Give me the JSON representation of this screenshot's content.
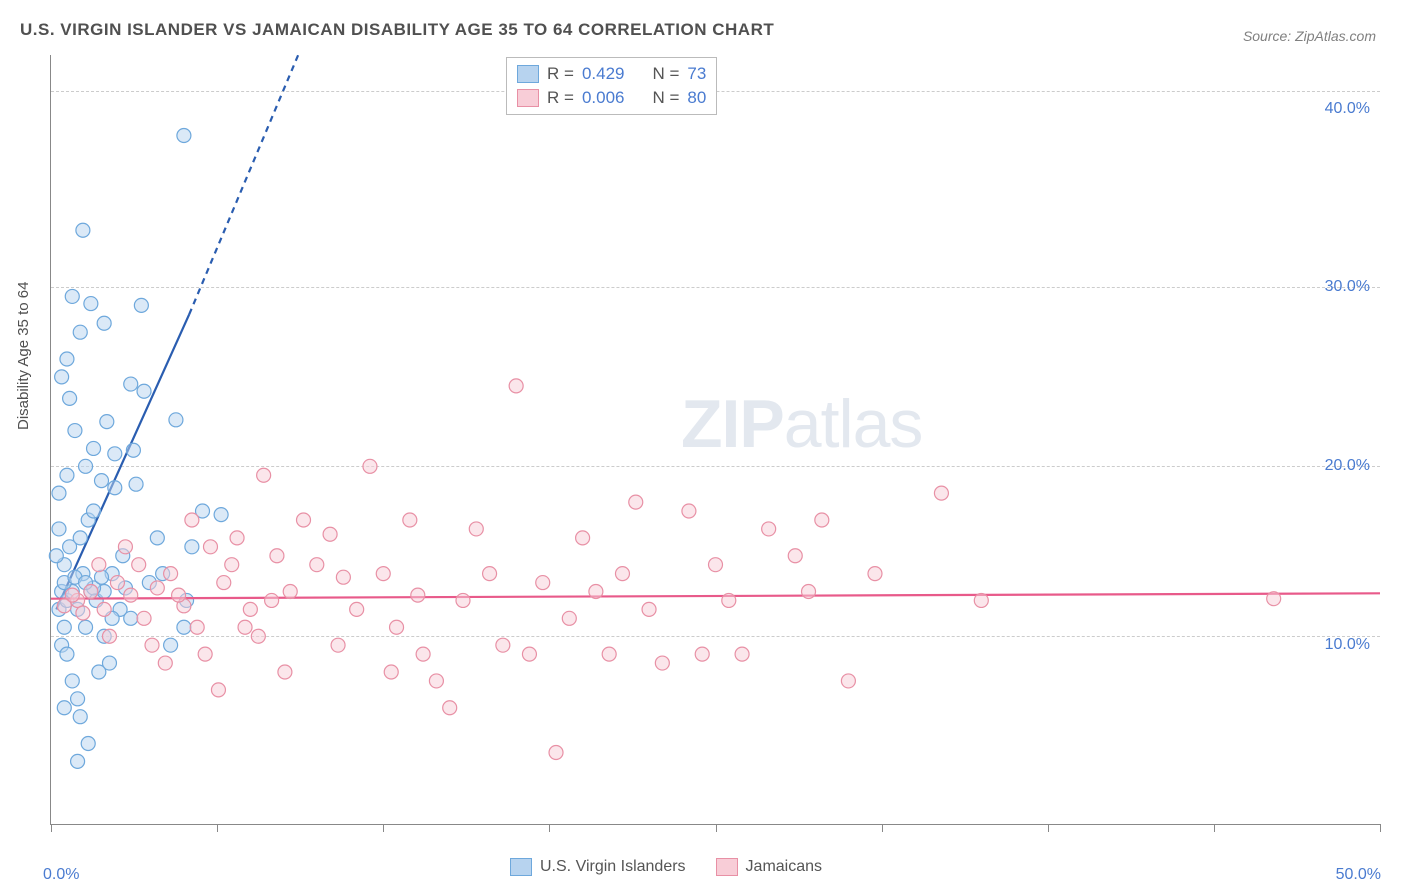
{
  "title": "U.S. VIRGIN ISLANDER VS JAMAICAN DISABILITY AGE 35 TO 64 CORRELATION CHART",
  "source": "Source: ZipAtlas.com",
  "ylabel": "Disability Age 35 to 64",
  "watermark_zip": "ZIP",
  "watermark_atlas": "atlas",
  "chart": {
    "type": "scatter",
    "xlim": [
      0,
      50
    ],
    "ylim": [
      0,
      43
    ],
    "x_ticks": [
      0,
      6.25,
      12.5,
      18.75,
      25,
      31.25,
      37.5,
      43.75,
      50
    ],
    "x_tick_labels": {
      "0": "0.0%",
      "50": "50.0%"
    },
    "y_grid": [
      10.5,
      20,
      30,
      41
    ],
    "y_tick_labels": [
      {
        "v": 10,
        "label": "10.0%"
      },
      {
        "v": 20,
        "label": "20.0%"
      },
      {
        "v": 30,
        "label": "30.0%"
      },
      {
        "v": 40,
        "label": "40.0%"
      }
    ],
    "background_color": "#ffffff",
    "grid_color": "#cccccc",
    "axis_color": "#888888",
    "marker_radius": 7,
    "marker_opacity": 0.5,
    "series": [
      {
        "name": "U.S. Virgin Islanders",
        "color_fill": "#b7d3ef",
        "color_stroke": "#6ea8dc",
        "R": "0.429",
        "N": "73",
        "trend": {
          "x1": 0.2,
          "y1": 12,
          "x2": 5.2,
          "y2": 28.5,
          "dash_to_x": 9.3,
          "dash_to_y": 43,
          "color": "#2a5db0",
          "width": 2.2
        },
        "points": [
          [
            0.3,
            12
          ],
          [
            0.4,
            13
          ],
          [
            0.5,
            11
          ],
          [
            0.6,
            12.5
          ],
          [
            0.8,
            13
          ],
          [
            1.0,
            12
          ],
          [
            1.2,
            14
          ],
          [
            0.5,
            14.5
          ],
          [
            0.7,
            15.5
          ],
          [
            1.1,
            16
          ],
          [
            0.4,
            10
          ],
          [
            0.6,
            9.5
          ],
          [
            1.3,
            11
          ],
          [
            1.5,
            13
          ],
          [
            0.8,
            8
          ],
          [
            1.0,
            7
          ],
          [
            1.7,
            12.5
          ],
          [
            2.0,
            13
          ],
          [
            2.3,
            14
          ],
          [
            2.6,
            12
          ],
          [
            1.4,
            17
          ],
          [
            1.6,
            17.5
          ],
          [
            2.0,
            10.5
          ],
          [
            2.3,
            11.5
          ],
          [
            2.7,
            15
          ],
          [
            0.5,
            6.5
          ],
          [
            1.1,
            6
          ],
          [
            1.4,
            4.5
          ],
          [
            1.0,
            3.5
          ],
          [
            1.8,
            8.5
          ],
          [
            2.2,
            9
          ],
          [
            1.3,
            20
          ],
          [
            1.6,
            21
          ],
          [
            2.1,
            22.5
          ],
          [
            2.4,
            20.7
          ],
          [
            3.1,
            20.9
          ],
          [
            3.0,
            24.6
          ],
          [
            3.5,
            24.2
          ],
          [
            4.7,
            22.6
          ],
          [
            0.7,
            23.8
          ],
          [
            1.1,
            27.5
          ],
          [
            1.5,
            29.1
          ],
          [
            2.0,
            28
          ],
          [
            3.4,
            29
          ],
          [
            0.8,
            29.5
          ],
          [
            1.2,
            33.2
          ],
          [
            5.0,
            38.5
          ],
          [
            3.7,
            13.5
          ],
          [
            4.2,
            14
          ],
          [
            5.1,
            12.5
          ],
          [
            5.7,
            17.5
          ],
          [
            6.4,
            17.3
          ],
          [
            5.3,
            15.5
          ],
          [
            4.0,
            16
          ],
          [
            3.2,
            19
          ],
          [
            0.3,
            18.5
          ],
          [
            0.6,
            19.5
          ],
          [
            5.0,
            11
          ],
          [
            4.5,
            10
          ],
          [
            3.0,
            11.5
          ],
          [
            1.9,
            19.2
          ],
          [
            2.4,
            18.8
          ],
          [
            0.2,
            15
          ],
          [
            0.3,
            16.5
          ],
          [
            0.9,
            22
          ],
          [
            0.4,
            25
          ],
          [
            0.6,
            26
          ],
          [
            1.6,
            13.2
          ],
          [
            1.9,
            13.8
          ],
          [
            2.8,
            13.2
          ],
          [
            0.5,
            13.5
          ],
          [
            0.9,
            13.8
          ],
          [
            1.3,
            13.5
          ]
        ]
      },
      {
        "name": "Jamaicans",
        "color_fill": "#f8cdd7",
        "color_stroke": "#e890a5",
        "R": "0.006",
        "N": "80",
        "trend": {
          "x1": 0,
          "y1": 12.6,
          "x2": 50,
          "y2": 12.9,
          "color": "#e85a8a",
          "width": 2.2
        },
        "points": [
          [
            1.0,
            12.5
          ],
          [
            1.5,
            13
          ],
          [
            2.0,
            12
          ],
          [
            2.5,
            13.5
          ],
          [
            3.0,
            12.8
          ],
          [
            3.5,
            11.5
          ],
          [
            4.0,
            13.2
          ],
          [
            4.5,
            14
          ],
          [
            5.0,
            12.2
          ],
          [
            5.5,
            11
          ],
          [
            6.0,
            15.5
          ],
          [
            6.5,
            13.5
          ],
          [
            7.0,
            16
          ],
          [
            7.5,
            12
          ],
          [
            8.0,
            19.5
          ],
          [
            8.5,
            15
          ],
          [
            9.0,
            13
          ],
          [
            9.5,
            17
          ],
          [
            10.0,
            14.5
          ],
          [
            10.5,
            16.2
          ],
          [
            11.0,
            13.8
          ],
          [
            11.5,
            12
          ],
          [
            12.0,
            20
          ],
          [
            12.5,
            14
          ],
          [
            13.0,
            11
          ],
          [
            13.5,
            17
          ],
          [
            14.0,
            9.5
          ],
          [
            14.5,
            8
          ],
          [
            15.0,
            6.5
          ],
          [
            15.5,
            12.5
          ],
          [
            16.0,
            16.5
          ],
          [
            17.5,
            24.5
          ],
          [
            16.5,
            14
          ],
          [
            17.0,
            10
          ],
          [
            18.0,
            9.5
          ],
          [
            18.5,
            13.5
          ],
          [
            19.0,
            4
          ],
          [
            19.5,
            11.5
          ],
          [
            20.0,
            16
          ],
          [
            20.5,
            13
          ],
          [
            21.0,
            9.5
          ],
          [
            21.5,
            14
          ],
          [
            22.0,
            18
          ],
          [
            22.5,
            12
          ],
          [
            23.0,
            9
          ],
          [
            24.0,
            17.5
          ],
          [
            25.0,
            14.5
          ],
          [
            25.5,
            12.5
          ],
          [
            26.0,
            9.5
          ],
          [
            27.0,
            16.5
          ],
          [
            28.0,
            15
          ],
          [
            28.5,
            13
          ],
          [
            29.0,
            17
          ],
          [
            30.0,
            8
          ],
          [
            31.0,
            14
          ],
          [
            33.5,
            18.5
          ],
          [
            35.0,
            12.5
          ],
          [
            2.2,
            10.5
          ],
          [
            3.8,
            10
          ],
          [
            4.3,
            9
          ],
          [
            5.8,
            9.5
          ],
          [
            6.3,
            7.5
          ],
          [
            7.8,
            10.5
          ],
          [
            8.8,
            8.5
          ],
          [
            10.8,
            10
          ],
          [
            12.8,
            8.5
          ],
          [
            13.8,
            12.8
          ],
          [
            24.5,
            9.5
          ],
          [
            46.0,
            12.6
          ],
          [
            5.3,
            17
          ],
          [
            6.8,
            14.5
          ],
          [
            7.3,
            11
          ],
          [
            8.3,
            12.5
          ],
          [
            4.8,
            12.8
          ],
          [
            3.3,
            14.5
          ],
          [
            2.8,
            15.5
          ],
          [
            1.8,
            14.5
          ],
          [
            1.2,
            11.8
          ],
          [
            0.8,
            12.8
          ],
          [
            0.5,
            12.2
          ]
        ]
      }
    ]
  },
  "legend_bottom": {
    "item1": "U.S. Virgin Islanders",
    "item2": "Jamaicans"
  },
  "rn_legend": {
    "r_label": "R  =",
    "n_label": "N  ="
  }
}
